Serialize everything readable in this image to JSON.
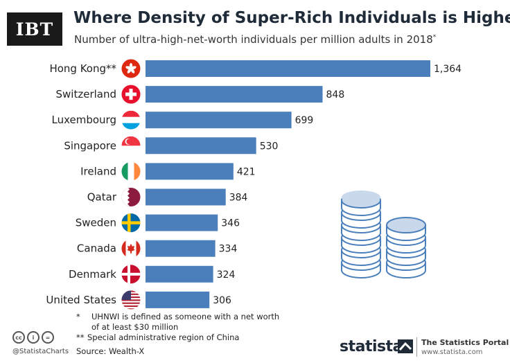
{
  "logo": "IBT",
  "title": "Where Density of Super-Rich Individuals is Highest",
  "subtitle": "Number of ultra-high-net-worth individuals per million adults in 2018",
  "subtitle_mark": "*",
  "chart_data": {
    "type": "bar",
    "orientation": "horizontal",
    "categories": [
      "Hong Kong**",
      "Switzerland",
      "Luxembourg",
      "Singapore",
      "Ireland",
      "Qatar",
      "Sweden",
      "Canada",
      "Denmark",
      "United States"
    ],
    "values": [
      1364,
      848,
      699,
      530,
      421,
      384,
      346,
      334,
      324,
      306
    ],
    "value_labels": [
      "1,364",
      "848",
      "699",
      "530",
      "421",
      "384",
      "346",
      "334",
      "324",
      "306"
    ],
    "flags": [
      "hong-kong-flag",
      "switzerland-flag",
      "luxembourg-flag",
      "singapore-flag",
      "ireland-flag",
      "qatar-flag",
      "sweden-flag",
      "canada-flag",
      "denmark-flag",
      "united-states-flag"
    ],
    "bar_color": "#4a7fbc",
    "xlim": [
      0,
      1364
    ],
    "grid": false
  },
  "footnotes": [
    {
      "mark": "*",
      "text_line1": "UHNWI is defined as someone with a net worth",
      "text_line2": "of at least $30 million"
    },
    {
      "mark": "**",
      "text": "Special administrative region of China"
    }
  ],
  "source": "Source: Wealth-X",
  "handle": "@StatistaCharts",
  "brand": "statista",
  "portal_title": "The Statistics Portal",
  "portal_url": "www.statista.com",
  "colors": {
    "coin_fill": "#ffffff",
    "coin_top": "#c9d8ea",
    "coin_stroke": "#4a7fbc",
    "title": "#1f2b38"
  }
}
